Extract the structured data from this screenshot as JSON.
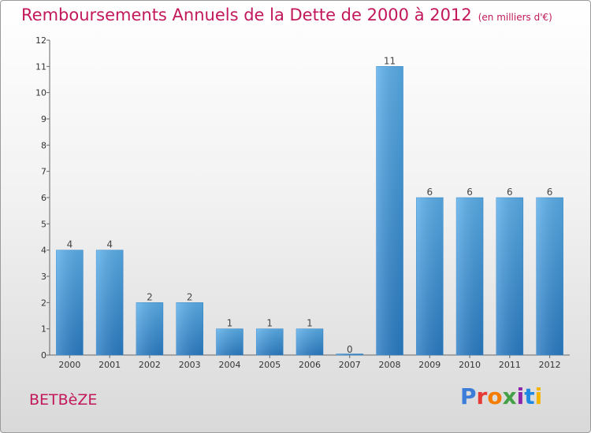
{
  "header": {
    "title": "Remboursements Annuels de la Dette de 2000 à 2012",
    "subtitle": "(en milliers d'€)"
  },
  "footer": {
    "place": "BETBèZE",
    "brand": "Proxiti",
    "brand_colors": [
      "#3b7dd8",
      "#e53935",
      "#f57c00",
      "#43a047",
      "#8e24aa",
      "#1e88e5",
      "#f4b400"
    ]
  },
  "chart_data": {
    "type": "bar",
    "categories": [
      "2000",
      "2001",
      "2002",
      "2003",
      "2004",
      "2005",
      "2006",
      "2007",
      "2008",
      "2009",
      "2010",
      "2011",
      "2012"
    ],
    "values": [
      4,
      4,
      2,
      2,
      1,
      1,
      1,
      0,
      11,
      6,
      6,
      6,
      6
    ],
    "value_labels": [
      "4",
      "4",
      "2",
      "2",
      "1",
      "1",
      "1",
      "0",
      "11",
      "6",
      "6",
      "6",
      "6"
    ],
    "ylim": [
      0,
      12
    ],
    "yticks": [
      "0",
      "1",
      "2",
      "3",
      "4",
      "5",
      "6",
      "7",
      "8",
      "9",
      "10",
      "11",
      "12"
    ],
    "bar_color": "#3c96dc",
    "grid": false
  }
}
